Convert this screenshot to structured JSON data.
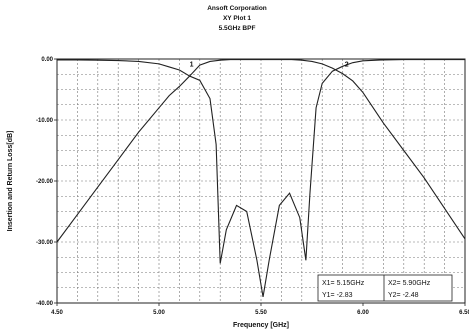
{
  "chart_data": {
    "type": "line",
    "title_lines": [
      "Ansoft Corporation",
      "XY Plot 1",
      "5.5GHz BPF"
    ],
    "xlabel": "Frequency [GHz]",
    "ylabel": "Insertion and Return Loss[dB]",
    "xlim": [
      4.5,
      6.5
    ],
    "ylim": [
      -40,
      0
    ],
    "x_ticks": [
      4.5,
      5.0,
      5.5,
      6.0,
      6.5
    ],
    "x_tick_labels": [
      "4.50",
      "5.00",
      "5.50",
      "6.00",
      "6.50"
    ],
    "y_ticks": [
      0,
      -10,
      -20,
      -30,
      -40
    ],
    "y_tick_labels": [
      "0.00",
      "-10.00",
      "-20.00",
      "-30.00",
      "-40.00"
    ],
    "grid": true,
    "series": [
      {
        "name": "",
        "x": [
          4.5,
          4.6,
          4.7,
          4.8,
          4.9,
          5.0,
          5.05,
          5.1,
          5.15,
          5.2,
          5.25,
          5.3,
          5.35,
          5.4,
          5.45,
          5.5,
          5.55,
          5.6,
          5.65,
          5.7,
          5.75,
          5.8,
          5.85,
          5.9,
          5.95,
          6.0,
          6.05,
          6.1,
          6.2,
          6.3,
          6.4,
          6.5
        ],
        "y": [
          -0.15,
          -0.15,
          -0.2,
          -0.25,
          -0.4,
          -0.8,
          -1.3,
          -1.8,
          -2.8,
          -1.0,
          -0.4,
          -0.2,
          -0.1,
          -0.1,
          -0.1,
          -0.1,
          -0.1,
          -0.1,
          -0.1,
          -0.2,
          -0.4,
          -0.8,
          -1.5,
          -2.4,
          -3.6,
          -5.5,
          -8.0,
          -10.5,
          -15.0,
          -19.5,
          -24.5,
          -29.5
        ]
      },
      {
        "name": "",
        "x": [
          4.5,
          4.6,
          4.7,
          4.8,
          4.9,
          5.0,
          5.05,
          5.1,
          5.15,
          5.2,
          5.25,
          5.28,
          5.3,
          5.33,
          5.38,
          5.43,
          5.48,
          5.51,
          5.54,
          5.59,
          5.64,
          5.69,
          5.72,
          5.74,
          5.77,
          5.8,
          5.85,
          5.9,
          5.95,
          6.0,
          6.1,
          6.2,
          6.3,
          6.4,
          6.5
        ],
        "y": [
          -30.0,
          -25.5,
          -21.0,
          -16.5,
          -12.0,
          -8.0,
          -6.0,
          -4.5,
          -2.8,
          -3.5,
          -6.5,
          -14.0,
          -33.5,
          -28.0,
          -24.0,
          -25.0,
          -33.0,
          -39.0,
          -33.0,
          -24.0,
          -22.0,
          -26.0,
          -33.0,
          -22.0,
          -8.0,
          -4.0,
          -2.0,
          -1.2,
          -0.6,
          -0.3,
          -0.15,
          -0.1,
          -0.1,
          -0.1,
          -0.1
        ]
      }
    ],
    "curve_labels": [
      {
        "text": "1",
        "x": 5.16,
        "y": -1.2
      },
      {
        "text": "2",
        "x": 5.92,
        "y": -1.2
      }
    ],
    "markers": [
      {
        "line1": "X1= 5.15GHz",
        "line2": "Y1= -2.83"
      },
      {
        "line1": "X2= 5.90GHz",
        "line2": "Y2= -2.48"
      }
    ]
  }
}
